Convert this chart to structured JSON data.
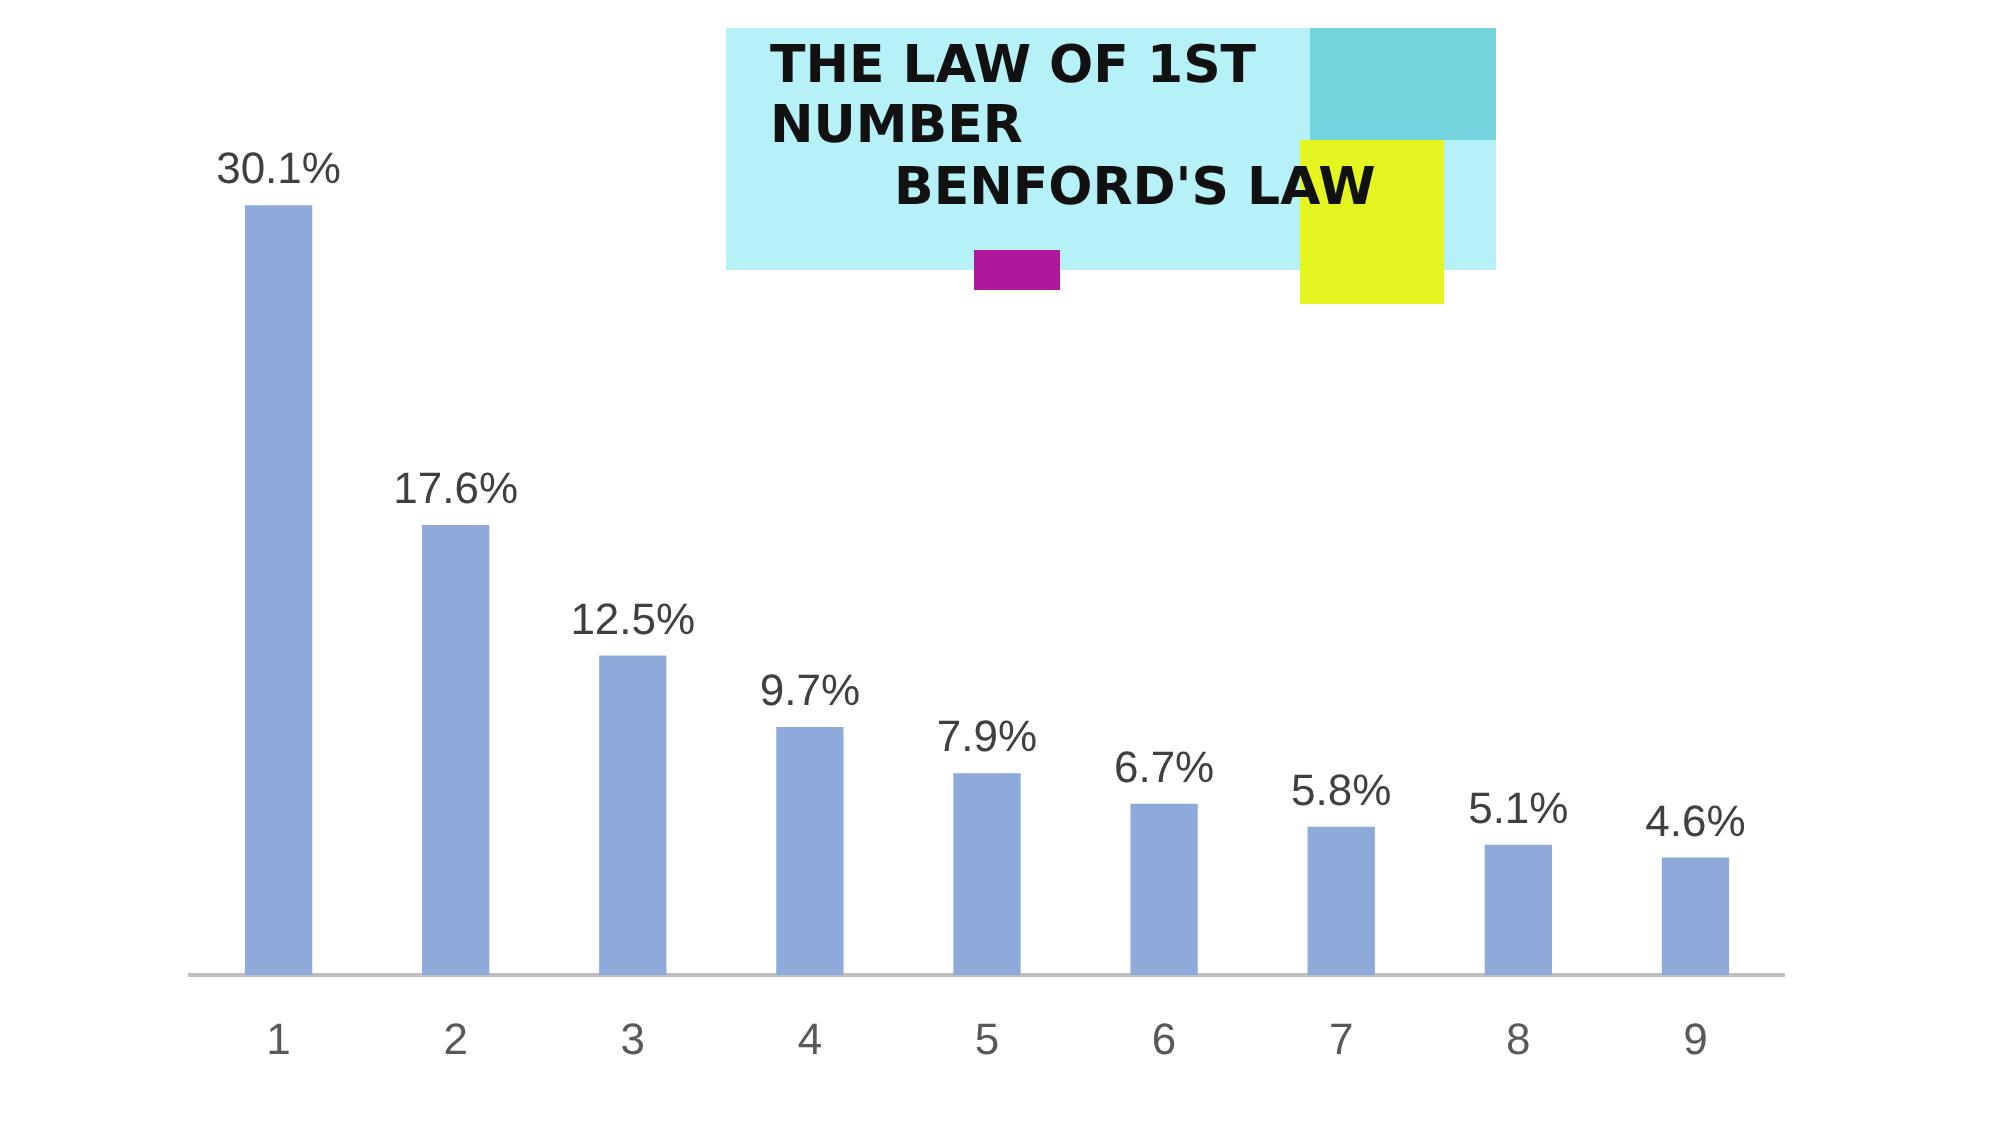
{
  "chart_data": {
    "type": "bar",
    "title": "THE LAW OF 1ST NUMBER",
    "subtitle": "BENFORD'S LAW",
    "categories": [
      "1",
      "2",
      "3",
      "4",
      "5",
      "6",
      "7",
      "8",
      "9"
    ],
    "values": [
      30.1,
      17.6,
      12.5,
      9.7,
      7.9,
      6.7,
      5.8,
      5.1,
      4.6
    ],
    "value_labels": [
      "30.1%",
      "17.6%",
      "12.5%",
      "9.7%",
      "7.9%",
      "6.7%",
      "5.8%",
      "5.1%",
      "4.6%"
    ],
    "color": "#8eaadb",
    "tick_labels": "x",
    "grid": false,
    "legend": false
  }
}
